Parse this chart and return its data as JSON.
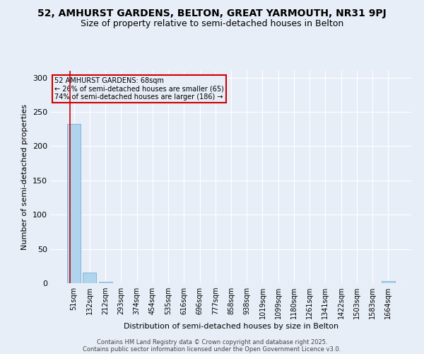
{
  "title": "52, AMHURST GARDENS, BELTON, GREAT YARMOUTH, NR31 9PJ",
  "subtitle": "Size of property relative to semi-detached houses in Belton",
  "xlabel": "Distribution of semi-detached houses by size in Belton",
  "ylabel": "Number of semi-detached properties",
  "bar_values": [
    233,
    15,
    2,
    0,
    0,
    0,
    0,
    0,
    0,
    0,
    0,
    0,
    0,
    0,
    0,
    0,
    0,
    0,
    0,
    0,
    3
  ],
  "bar_labels": [
    "51sqm",
    "132sqm",
    "212sqm",
    "293sqm",
    "374sqm",
    "454sqm",
    "535sqm",
    "616sqm",
    "696sqm",
    "777sqm",
    "858sqm",
    "938sqm",
    "1019sqm",
    "1099sqm",
    "1180sqm",
    "1261sqm",
    "1341sqm",
    "1422sqm",
    "1503sqm",
    "1583sqm",
    "1664sqm"
  ],
  "bar_color": "#aed4ee",
  "bar_edge_color": "#7ab0d4",
  "ylim": [
    0,
    310
  ],
  "yticks": [
    0,
    50,
    100,
    150,
    200,
    250,
    300
  ],
  "vline_x": 0.21,
  "vline_color": "#cc0000",
  "annotation_text": "52 AMHURST GARDENS: 68sqm\n← 26% of semi-detached houses are smaller (65)\n74% of semi-detached houses are larger (186) →",
  "annotation_box_color": "#cc0000",
  "footer_line1": "Contains HM Land Registry data © Crown copyright and database right 2025.",
  "footer_line2": "Contains public sector information licensed under the Open Government Licence v3.0.",
  "bg_color": "#e8eef8",
  "grid_color": "#ffffff",
  "title_fontsize": 10,
  "subtitle_fontsize": 9,
  "tick_fontsize": 7,
  "ylabel_fontsize": 8,
  "xlabel_fontsize": 8,
  "footer_fontsize": 6
}
